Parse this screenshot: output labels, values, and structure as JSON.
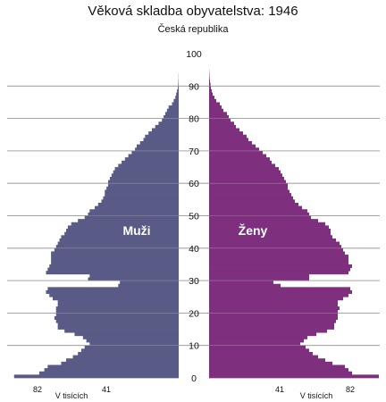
{
  "chart_data": {
    "type": "bar",
    "orientation": "horizontal-population-pyramid",
    "title": "Věková skladba obyvatelstva: 1946",
    "subtitle": "Česká republika",
    "y_ticks": [
      "0",
      "10",
      "20",
      "30",
      "40",
      "50",
      "60",
      "70",
      "80",
      "90",
      "100"
    ],
    "ylim": [
      0,
      100
    ],
    "x_ticks_left": [
      "82",
      "41"
    ],
    "x_ticks_right": [
      "41",
      "82"
    ],
    "x_unit_left": "V tisících",
    "x_unit_right": "V tisících",
    "xlim": [
      0,
      100
    ],
    "grid": "horizontal lines at each 10 years",
    "colors": {
      "muzi": "#5a5a86",
      "zeny": "#7e2f7e"
    },
    "series": [
      {
        "name": "Muži",
        "ages": [
          0,
          1,
          2,
          3,
          4,
          5,
          6,
          7,
          8,
          9,
          10,
          11,
          12,
          13,
          14,
          15,
          16,
          17,
          18,
          19,
          20,
          21,
          22,
          23,
          24,
          25,
          26,
          27,
          28,
          29,
          30,
          31,
          32,
          33,
          34,
          35,
          36,
          37,
          38,
          39,
          40,
          41,
          42,
          43,
          44,
          45,
          46,
          47,
          48,
          49,
          50,
          51,
          52,
          53,
          54,
          55,
          56,
          57,
          58,
          59,
          60,
          61,
          62,
          63,
          64,
          65,
          66,
          67,
          68,
          69,
          70,
          71,
          72,
          73,
          74,
          75,
          76,
          77,
          78,
          79,
          80,
          81,
          82,
          83,
          84,
          85,
          86,
          87,
          88,
          89,
          90,
          91,
          92,
          93,
          94,
          95
        ],
        "values": [
          98,
          83,
          80,
          78,
          70,
          67,
          63,
          60,
          58,
          56,
          53,
          55,
          57,
          62,
          68,
          72,
          72,
          73,
          74,
          73,
          73,
          73,
          72,
          72,
          75,
          77,
          79,
          78,
          36,
          35,
          54,
          53,
          79,
          78,
          77,
          76,
          76,
          76,
          76,
          74,
          73,
          72,
          71,
          70,
          68,
          67,
          66,
          64,
          60,
          56,
          54,
          53,
          50,
          48,
          46,
          45,
          44,
          44,
          43,
          42,
          42,
          41,
          40,
          39,
          38,
          36,
          34,
          32,
          30,
          28,
          26,
          25,
          23,
          21,
          20,
          18,
          16,
          14,
          12,
          10,
          9,
          8,
          7,
          6,
          4,
          3,
          2,
          1.5,
          1,
          0.5,
          0.3,
          0.2,
          0.1,
          0.1,
          0,
          0
        ]
      },
      {
        "name": "Ženy",
        "ages": [
          0,
          1,
          2,
          3,
          4,
          5,
          6,
          7,
          8,
          9,
          10,
          11,
          12,
          13,
          14,
          15,
          16,
          17,
          18,
          19,
          20,
          21,
          22,
          23,
          24,
          25,
          26,
          27,
          28,
          29,
          30,
          31,
          32,
          33,
          34,
          35,
          36,
          37,
          38,
          39,
          40,
          41,
          42,
          43,
          44,
          45,
          46,
          47,
          48,
          49,
          50,
          51,
          52,
          53,
          54,
          55,
          56,
          57,
          58,
          59,
          60,
          61,
          62,
          63,
          64,
          65,
          66,
          67,
          68,
          69,
          70,
          71,
          72,
          73,
          74,
          75,
          76,
          77,
          78,
          79,
          80,
          81,
          82,
          83,
          84,
          85,
          86,
          87,
          88,
          89,
          90,
          91,
          92,
          93,
          94,
          95
        ],
        "values": [
          95,
          80,
          78,
          76,
          69,
          65,
          61,
          58,
          56,
          54,
          51,
          53,
          55,
          60,
          66,
          70,
          70,
          71,
          72,
          72,
          72,
          73,
          72,
          72,
          75,
          78,
          80,
          79,
          40,
          36,
          56,
          56,
          78,
          79,
          80,
          78,
          78,
          78,
          76,
          75,
          74,
          73,
          71,
          69,
          68,
          68,
          67,
          65,
          61,
          57,
          56,
          55,
          52,
          50,
          48,
          47,
          46,
          45,
          44,
          44,
          43,
          42,
          41,
          40,
          39,
          37,
          35,
          34,
          32,
          30,
          28,
          26,
          24,
          22,
          21,
          19,
          17,
          15,
          14,
          12,
          11,
          10,
          8,
          7,
          6,
          4,
          3,
          2,
          1.5,
          1,
          0.8,
          0.5,
          0.3,
          0.2,
          0.1,
          0
        ]
      }
    ]
  }
}
